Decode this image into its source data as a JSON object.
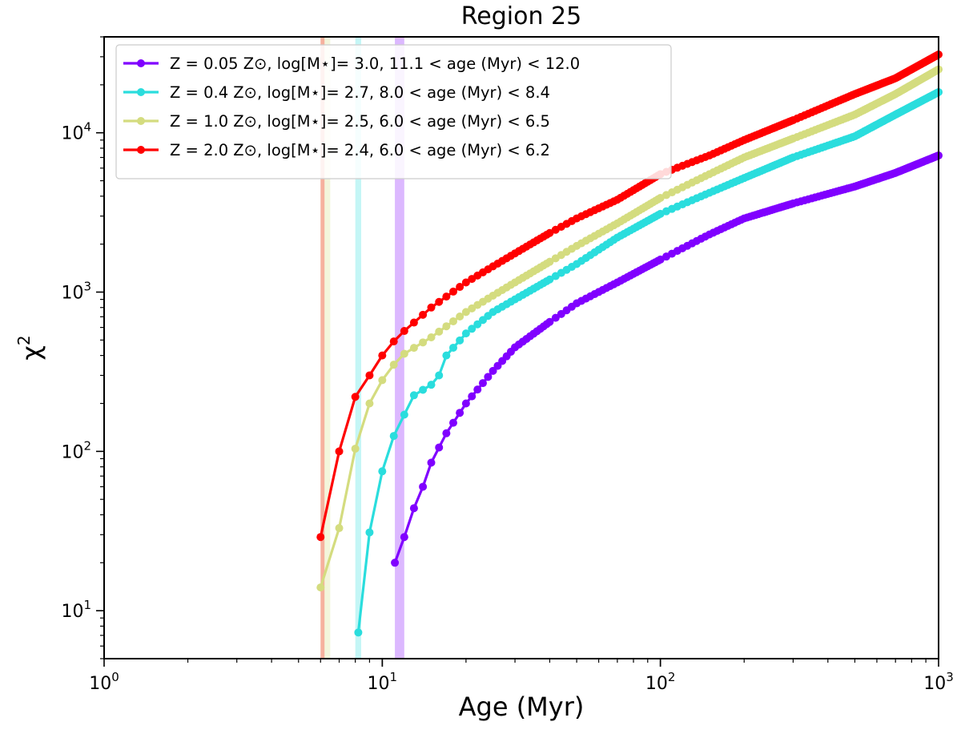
{
  "chart_data": {
    "type": "line",
    "title": "Region 25",
    "xlabel": "Age (Myr)",
    "ylabel": "χ",
    "ylabel_superscript": "2",
    "xscale": "log",
    "yscale": "log",
    "xlim": [
      1,
      1000
    ],
    "ylim": [
      5,
      40000
    ],
    "xticks": [
      {
        "value": 1,
        "base": "10",
        "exp": "0"
      },
      {
        "value": 10,
        "base": "10",
        "exp": "1"
      },
      {
        "value": 100,
        "base": "10",
        "exp": "2"
      },
      {
        "value": 1000,
        "base": "10",
        "exp": "3"
      }
    ],
    "yticks": [
      {
        "value": 10,
        "base": "10",
        "exp": "1"
      },
      {
        "value": 100,
        "base": "10",
        "exp": "2"
      },
      {
        "value": 1000,
        "base": "10",
        "exp": "3"
      },
      {
        "value": 10000,
        "base": "10",
        "exp": "4"
      }
    ],
    "legend_position": "top-left",
    "series": [
      {
        "name": "Z = 0.05 Z⊙, log[M⋆]= 3.0, 11.1 < age (Myr) < 12.0",
        "color": "#8000ff",
        "band": [
          11.1,
          12.0
        ],
        "anchors": [
          [
            11.1,
            20
          ],
          [
            12,
            29
          ],
          [
            13,
            44
          ],
          [
            14,
            60
          ],
          [
            15,
            85
          ],
          [
            17,
            130
          ],
          [
            20,
            200
          ],
          [
            25,
            320
          ],
          [
            30,
            450
          ],
          [
            40,
            650
          ],
          [
            50,
            850
          ],
          [
            70,
            1150
          ],
          [
            100,
            1600
          ],
          [
            150,
            2300
          ],
          [
            200,
            2900
          ],
          [
            300,
            3600
          ],
          [
            500,
            4600
          ],
          [
            700,
            5600
          ],
          [
            1000,
            7200
          ]
        ]
      },
      {
        "name": "Z = 0.4 Z⊙, log[M⋆]= 2.7, 8.0 < age (Myr) < 8.4",
        "color": "#2adddd",
        "band": [
          8.0,
          8.4
        ],
        "anchors": [
          [
            8.2,
            7.3
          ],
          [
            9,
            31
          ],
          [
            10,
            75
          ],
          [
            11,
            125
          ],
          [
            12,
            170
          ],
          [
            13,
            225
          ],
          [
            15,
            262
          ],
          [
            16,
            300
          ],
          [
            17,
            400
          ],
          [
            20,
            550
          ],
          [
            25,
            750
          ],
          [
            30,
            900
          ],
          [
            40,
            1200
          ],
          [
            50,
            1500
          ],
          [
            70,
            2200
          ],
          [
            100,
            3100
          ],
          [
            150,
            4200
          ],
          [
            200,
            5200
          ],
          [
            300,
            7000
          ],
          [
            500,
            9500
          ],
          [
            700,
            13000
          ],
          [
            1000,
            18000
          ]
        ]
      },
      {
        "name": "Z = 1.0 Z⊙, log[M⋆]= 2.5, 6.0 < age (Myr) < 6.5",
        "color": "#d4dc7f",
        "band": [
          6.0,
          6.5
        ],
        "anchors": [
          [
            6.0,
            14
          ],
          [
            7,
            33
          ],
          [
            8,
            104
          ],
          [
            9,
            200
          ],
          [
            10,
            280
          ],
          [
            11,
            350
          ],
          [
            12,
            410
          ],
          [
            15,
            520
          ],
          [
            20,
            750
          ],
          [
            25,
            950
          ],
          [
            30,
            1150
          ],
          [
            40,
            1550
          ],
          [
            50,
            1950
          ],
          [
            70,
            2700
          ],
          [
            100,
            3900
          ],
          [
            150,
            5500
          ],
          [
            200,
            7000
          ],
          [
            300,
            9200
          ],
          [
            500,
            13000
          ],
          [
            700,
            17500
          ],
          [
            1000,
            25000
          ]
        ]
      },
      {
        "name": "Z = 2.0 Z⊙, log[M⋆]= 2.4, 6.0 < age (Myr) < 6.2",
        "color": "#ff0000",
        "band": [
          6.0,
          6.2
        ],
        "anchors": [
          [
            6.0,
            29
          ],
          [
            7,
            100
          ],
          [
            8,
            220
          ],
          [
            9,
            300
          ],
          [
            10,
            400
          ],
          [
            11,
            490
          ],
          [
            12,
            570
          ],
          [
            15,
            800
          ],
          [
            20,
            1150
          ],
          [
            25,
            1450
          ],
          [
            30,
            1750
          ],
          [
            40,
            2350
          ],
          [
            50,
            2900
          ],
          [
            70,
            3800
          ],
          [
            100,
            5500
          ],
          [
            150,
            7200
          ],
          [
            200,
            9000
          ],
          [
            300,
            12000
          ],
          [
            500,
            17500
          ],
          [
            700,
            22000
          ],
          [
            1000,
            31000
          ]
        ]
      }
    ]
  }
}
